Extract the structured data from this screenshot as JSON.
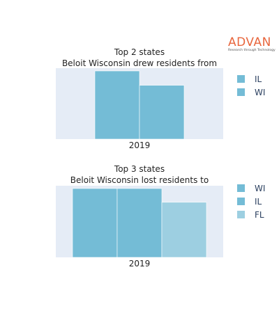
{
  "brand": {
    "name": "ADVAN",
    "tagline": "Research through Technology"
  },
  "chart_data": [
    {
      "type": "bar",
      "title": "Top 2 states",
      "subtitle": "Beloit Wisconsin drew residents from",
      "categories": [
        "2019"
      ],
      "series": [
        {
          "name": "IL",
          "values": [
            1.0
          ],
          "color": "#74bcd6"
        },
        {
          "name": "WI",
          "values": [
            0.79
          ],
          "color": "#74bcd6"
        }
      ],
      "legend": "right",
      "yaxis_visible": false,
      "grid": false
    },
    {
      "type": "bar",
      "title": "Top 3 states",
      "subtitle": "Beloit Wisconsin lost residents to",
      "categories": [
        "2019"
      ],
      "series": [
        {
          "name": "WI",
          "values": [
            1.0
          ],
          "color": "#74bcd6"
        },
        {
          "name": "IL",
          "values": [
            1.0
          ],
          "color": "#74bcd6"
        },
        {
          "name": "FL",
          "values": [
            0.8
          ],
          "color": "#9dcfe1"
        }
      ],
      "legend": "right",
      "yaxis_visible": false,
      "grid": false
    }
  ],
  "colors": {
    "plot_bg": "#e5ecf6",
    "text": "#2a3f5f",
    "accent": "#e8663d"
  }
}
